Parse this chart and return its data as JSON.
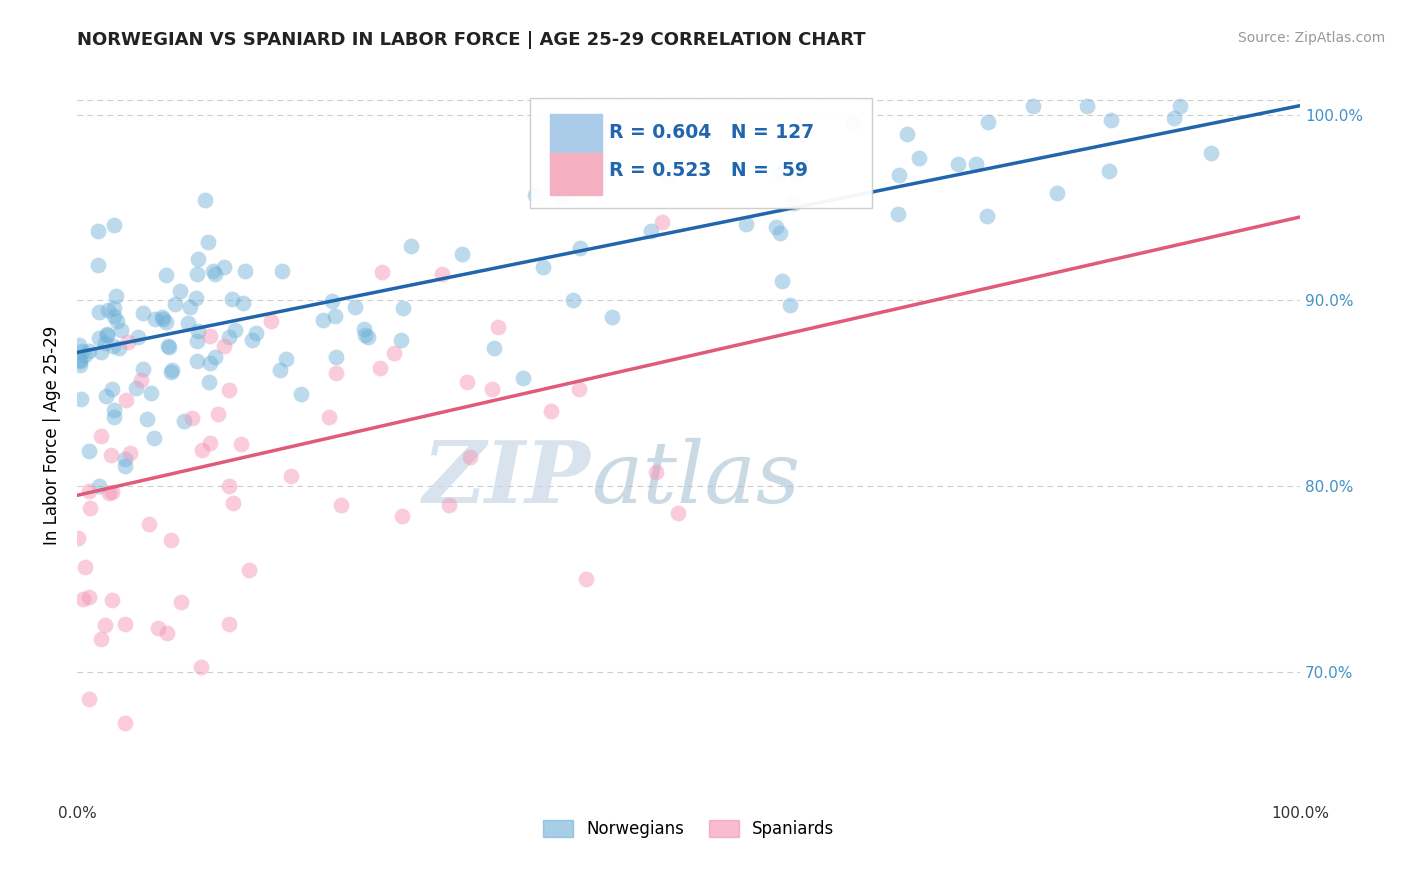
{
  "title": "NORWEGIAN VS SPANIARD IN LABOR FORCE | AGE 25-29 CORRELATION CHART",
  "source_text": "Source: ZipAtlas.com",
  "ylabel": "In Labor Force | Age 25-29",
  "norwegian_R": 0.604,
  "norwegian_N": 127,
  "spaniard_R": 0.523,
  "spaniard_N": 59,
  "norwegian_color": "#6baed6",
  "spaniard_color": "#f48fb1",
  "norwegian_line_color": "#2166ac",
  "spaniard_line_color": "#e05a7a",
  "watermark_zip": "ZIP",
  "watermark_atlas": "atlas",
  "xlim": [
    0.0,
    1.0
  ],
  "ylim": [
    0.63,
    1.025
  ],
  "y_ticks": [
    0.7,
    0.8,
    0.9,
    1.0
  ],
  "background_color": "#ffffff",
  "grid_color": "#cccccc",
  "nor_line_start": 0.872,
  "nor_line_end": 1.005,
  "spa_line_start": 0.795,
  "spa_line_end": 0.945
}
